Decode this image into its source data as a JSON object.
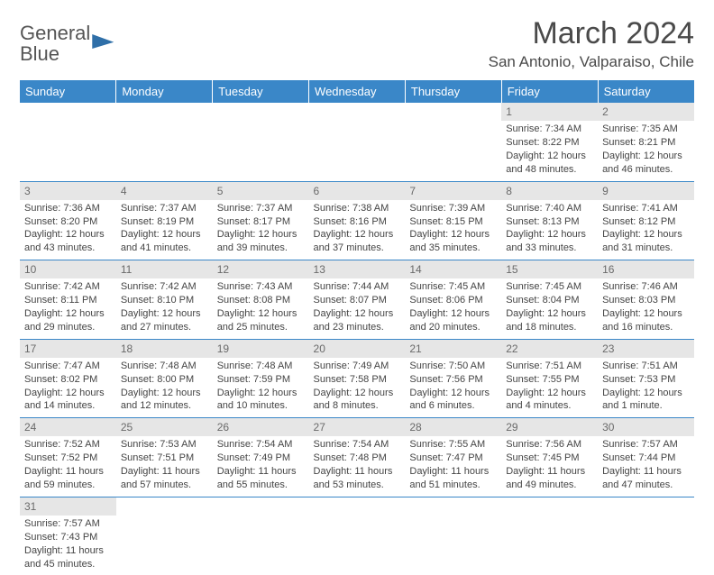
{
  "logo": {
    "text1": "General",
    "text2": "Blue"
  },
  "title": "March 2024",
  "location": "San Antonio, Valparaiso, Chile",
  "day_headers": [
    "Sunday",
    "Monday",
    "Tuesday",
    "Wednesday",
    "Thursday",
    "Friday",
    "Saturday"
  ],
  "colors": {
    "header_bg": "#3a87c8",
    "header_text": "#ffffff",
    "daynum_bg": "#e6e6e6",
    "daynum_text": "#6a6a6a",
    "body_text": "#444444",
    "rule": "#3a87c8",
    "logo_accent": "#2f6fa8"
  },
  "typography": {
    "title_fontsize": 34,
    "location_fontsize": 17,
    "header_fontsize": 13,
    "body_fontsize": 11
  },
  "weeks": [
    [
      null,
      null,
      null,
      null,
      null,
      {
        "n": "1",
        "sunrise": "Sunrise: 7:34 AM",
        "sunset": "Sunset: 8:22 PM",
        "daylight": "Daylight: 12 hours and 48 minutes."
      },
      {
        "n": "2",
        "sunrise": "Sunrise: 7:35 AM",
        "sunset": "Sunset: 8:21 PM",
        "daylight": "Daylight: 12 hours and 46 minutes."
      }
    ],
    [
      {
        "n": "3",
        "sunrise": "Sunrise: 7:36 AM",
        "sunset": "Sunset: 8:20 PM",
        "daylight": "Daylight: 12 hours and 43 minutes."
      },
      {
        "n": "4",
        "sunrise": "Sunrise: 7:37 AM",
        "sunset": "Sunset: 8:19 PM",
        "daylight": "Daylight: 12 hours and 41 minutes."
      },
      {
        "n": "5",
        "sunrise": "Sunrise: 7:37 AM",
        "sunset": "Sunset: 8:17 PM",
        "daylight": "Daylight: 12 hours and 39 minutes."
      },
      {
        "n": "6",
        "sunrise": "Sunrise: 7:38 AM",
        "sunset": "Sunset: 8:16 PM",
        "daylight": "Daylight: 12 hours and 37 minutes."
      },
      {
        "n": "7",
        "sunrise": "Sunrise: 7:39 AM",
        "sunset": "Sunset: 8:15 PM",
        "daylight": "Daylight: 12 hours and 35 minutes."
      },
      {
        "n": "8",
        "sunrise": "Sunrise: 7:40 AM",
        "sunset": "Sunset: 8:13 PM",
        "daylight": "Daylight: 12 hours and 33 minutes."
      },
      {
        "n": "9",
        "sunrise": "Sunrise: 7:41 AM",
        "sunset": "Sunset: 8:12 PM",
        "daylight": "Daylight: 12 hours and 31 minutes."
      }
    ],
    [
      {
        "n": "10",
        "sunrise": "Sunrise: 7:42 AM",
        "sunset": "Sunset: 8:11 PM",
        "daylight": "Daylight: 12 hours and 29 minutes."
      },
      {
        "n": "11",
        "sunrise": "Sunrise: 7:42 AM",
        "sunset": "Sunset: 8:10 PM",
        "daylight": "Daylight: 12 hours and 27 minutes."
      },
      {
        "n": "12",
        "sunrise": "Sunrise: 7:43 AM",
        "sunset": "Sunset: 8:08 PM",
        "daylight": "Daylight: 12 hours and 25 minutes."
      },
      {
        "n": "13",
        "sunrise": "Sunrise: 7:44 AM",
        "sunset": "Sunset: 8:07 PM",
        "daylight": "Daylight: 12 hours and 23 minutes."
      },
      {
        "n": "14",
        "sunrise": "Sunrise: 7:45 AM",
        "sunset": "Sunset: 8:06 PM",
        "daylight": "Daylight: 12 hours and 20 minutes."
      },
      {
        "n": "15",
        "sunrise": "Sunrise: 7:45 AM",
        "sunset": "Sunset: 8:04 PM",
        "daylight": "Daylight: 12 hours and 18 minutes."
      },
      {
        "n": "16",
        "sunrise": "Sunrise: 7:46 AM",
        "sunset": "Sunset: 8:03 PM",
        "daylight": "Daylight: 12 hours and 16 minutes."
      }
    ],
    [
      {
        "n": "17",
        "sunrise": "Sunrise: 7:47 AM",
        "sunset": "Sunset: 8:02 PM",
        "daylight": "Daylight: 12 hours and 14 minutes."
      },
      {
        "n": "18",
        "sunrise": "Sunrise: 7:48 AM",
        "sunset": "Sunset: 8:00 PM",
        "daylight": "Daylight: 12 hours and 12 minutes."
      },
      {
        "n": "19",
        "sunrise": "Sunrise: 7:48 AM",
        "sunset": "Sunset: 7:59 PM",
        "daylight": "Daylight: 12 hours and 10 minutes."
      },
      {
        "n": "20",
        "sunrise": "Sunrise: 7:49 AM",
        "sunset": "Sunset: 7:58 PM",
        "daylight": "Daylight: 12 hours and 8 minutes."
      },
      {
        "n": "21",
        "sunrise": "Sunrise: 7:50 AM",
        "sunset": "Sunset: 7:56 PM",
        "daylight": "Daylight: 12 hours and 6 minutes."
      },
      {
        "n": "22",
        "sunrise": "Sunrise: 7:51 AM",
        "sunset": "Sunset: 7:55 PM",
        "daylight": "Daylight: 12 hours and 4 minutes."
      },
      {
        "n": "23",
        "sunrise": "Sunrise: 7:51 AM",
        "sunset": "Sunset: 7:53 PM",
        "daylight": "Daylight: 12 hours and 1 minute."
      }
    ],
    [
      {
        "n": "24",
        "sunrise": "Sunrise: 7:52 AM",
        "sunset": "Sunset: 7:52 PM",
        "daylight": "Daylight: 11 hours and 59 minutes."
      },
      {
        "n": "25",
        "sunrise": "Sunrise: 7:53 AM",
        "sunset": "Sunset: 7:51 PM",
        "daylight": "Daylight: 11 hours and 57 minutes."
      },
      {
        "n": "26",
        "sunrise": "Sunrise: 7:54 AM",
        "sunset": "Sunset: 7:49 PM",
        "daylight": "Daylight: 11 hours and 55 minutes."
      },
      {
        "n": "27",
        "sunrise": "Sunrise: 7:54 AM",
        "sunset": "Sunset: 7:48 PM",
        "daylight": "Daylight: 11 hours and 53 minutes."
      },
      {
        "n": "28",
        "sunrise": "Sunrise: 7:55 AM",
        "sunset": "Sunset: 7:47 PM",
        "daylight": "Daylight: 11 hours and 51 minutes."
      },
      {
        "n": "29",
        "sunrise": "Sunrise: 7:56 AM",
        "sunset": "Sunset: 7:45 PM",
        "daylight": "Daylight: 11 hours and 49 minutes."
      },
      {
        "n": "30",
        "sunrise": "Sunrise: 7:57 AM",
        "sunset": "Sunset: 7:44 PM",
        "daylight": "Daylight: 11 hours and 47 minutes."
      }
    ],
    [
      {
        "n": "31",
        "sunrise": "Sunrise: 7:57 AM",
        "sunset": "Sunset: 7:43 PM",
        "daylight": "Daylight: 11 hours and 45 minutes."
      },
      null,
      null,
      null,
      null,
      null,
      null
    ]
  ]
}
